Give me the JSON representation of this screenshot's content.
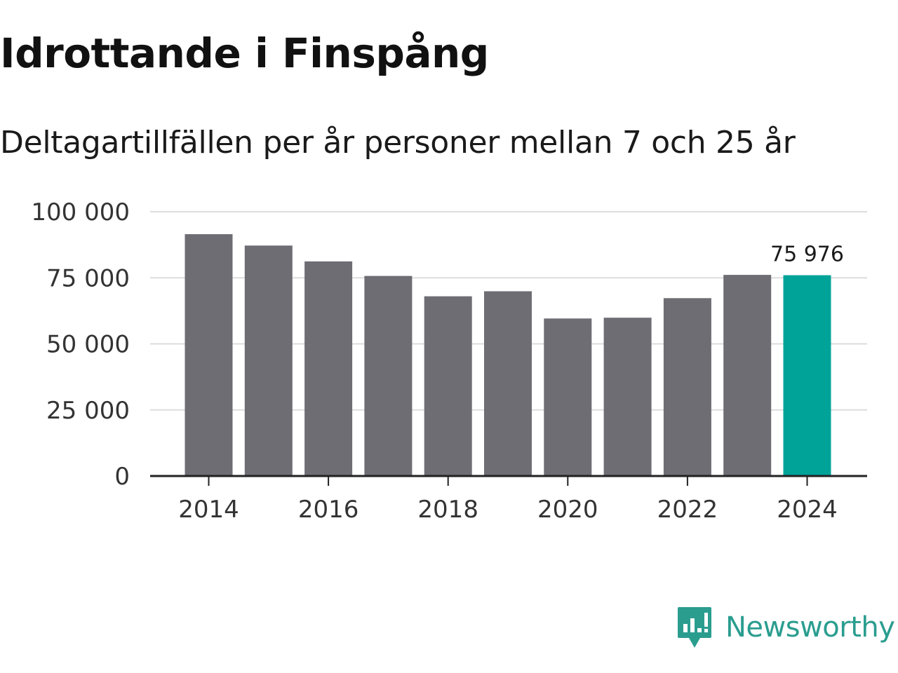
{
  "title": "Idrottande i Finspång",
  "subtitle": "Deltagartillfällen per år personer mellan 7 och 25 år",
  "brand": {
    "name": "Newsworthy",
    "color": "#2a9d8f"
  },
  "colors": {
    "bar": "#6e6d74",
    "highlight": "#00a398",
    "grid": "#dddddd",
    "axis": "#222222"
  },
  "chart_data": {
    "type": "bar",
    "title": "Idrottande i Finspång",
    "subtitle": "Deltagartillfällen per år personer mellan 7 och 25 år",
    "categories": [
      "2014",
      "2015",
      "2016",
      "2017",
      "2018",
      "2019",
      "2020",
      "2021",
      "2022",
      "2023",
      "2024"
    ],
    "values": [
      91500,
      87200,
      81200,
      75700,
      68000,
      69900,
      59600,
      59900,
      67300,
      76100,
      75976
    ],
    "highlight_index": 10,
    "data_labels": [
      {
        "index": 10,
        "text": "75 976"
      }
    ],
    "ylim": [
      0,
      100000
    ],
    "yticks": [
      0,
      25000,
      50000,
      75000,
      100000
    ],
    "ytick_labels": [
      "0",
      "25 000",
      "50 000",
      "75 000",
      "100 000"
    ],
    "xtick_labels": [
      "2014",
      "2016",
      "2018",
      "2020",
      "2022",
      "2024"
    ],
    "xlabel": "",
    "ylabel": "",
    "grid": true,
    "legend": "none"
  }
}
